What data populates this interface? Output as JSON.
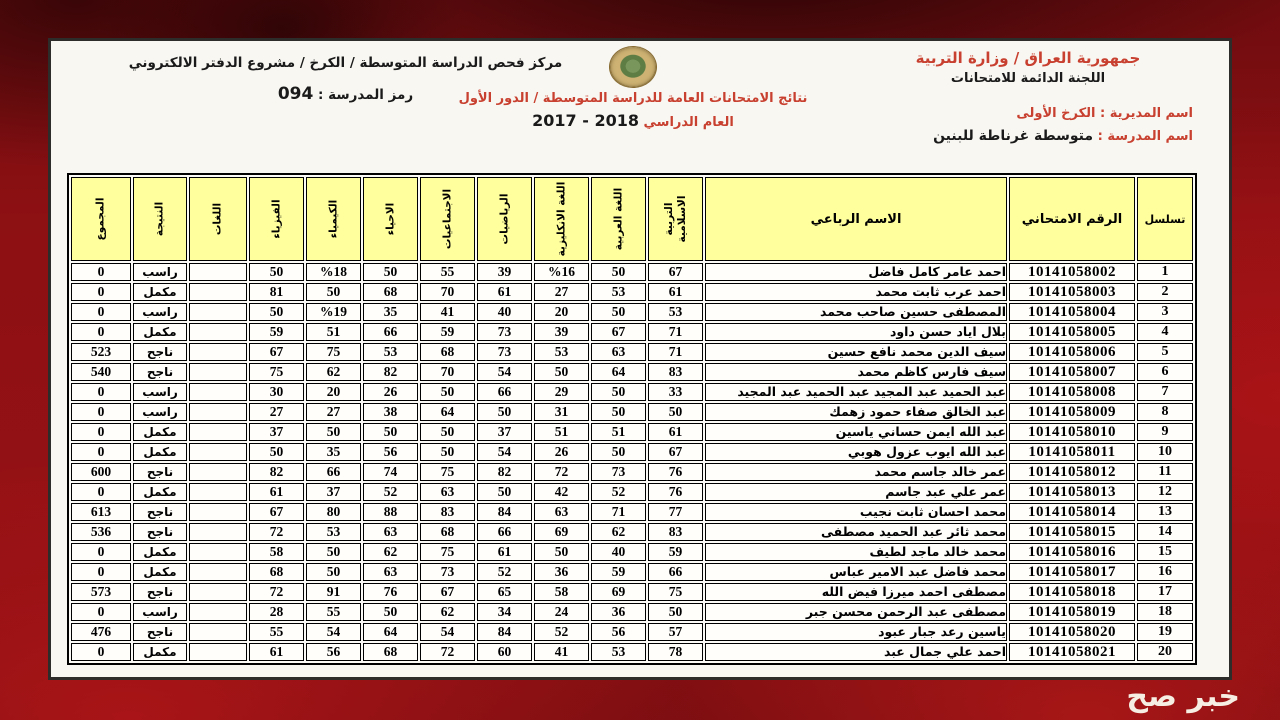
{
  "colors": {
    "background_red": "#8d1013",
    "text_red": "#c8402f",
    "header_yellow": "#ffff9e"
  },
  "watermark": "خبر صح",
  "header": {
    "right": {
      "ministry": "جمهورية العراق / وزارة التربية",
      "committee": "اللجنة الدائمة للامتحانات",
      "directorate": "اسم المديرية : الكرخ الأولى",
      "school_label": "اسم المدرسة :",
      "school_name": "متوسطة غرناطة للبنين"
    },
    "center": {
      "emblem": "iraq-ministry-of-education-emblem",
      "results_title": "نتائج الامتحانات العامة للدراسة المتوسطة / الدور الأول",
      "year_label": "العام الدراسي",
      "year_value": "2017 - 2018"
    },
    "left": {
      "center_line": "مركز فحص الدراسة المتوسطة /  الكرخ  / مشروع الدفتر الالكتروني",
      "school_code_label": "رمز المدرسة :",
      "school_code": "094"
    }
  },
  "table": {
    "columns": [
      {
        "key": "serial",
        "label": "تسلسل",
        "rotated": false
      },
      {
        "key": "exam_no",
        "label": "الرقم الامتحاني",
        "rotated": false
      },
      {
        "key": "name",
        "label": "الاسم الرباعي",
        "rotated": false
      },
      {
        "key": "islamic",
        "label": "التربية الاسلامية",
        "rotated": true
      },
      {
        "key": "arabic",
        "label": "اللغة العربية",
        "rotated": true
      },
      {
        "key": "english",
        "label": "اللغة الانكليزية",
        "rotated": true
      },
      {
        "key": "math",
        "label": "الرياضيات",
        "rotated": true
      },
      {
        "key": "social",
        "label": "الاجتماعيات",
        "rotated": true
      },
      {
        "key": "biology",
        "label": "الاحياء",
        "rotated": true
      },
      {
        "key": "chemistry",
        "label": "الكيمياء",
        "rotated": true
      },
      {
        "key": "physics",
        "label": "الفيزياء",
        "rotated": true
      },
      {
        "key": "languages",
        "label": "اللغات",
        "rotated": true
      },
      {
        "key": "result",
        "label": "النتيجة",
        "rotated": true
      },
      {
        "key": "total",
        "label": "المجموع",
        "rotated": true
      }
    ],
    "rows": [
      [
        "1",
        "10141058002",
        "احمد عامر كامل فاضل",
        "67",
        "50",
        "%16",
        "39",
        "55",
        "50",
        "%18",
        "50",
        "",
        "راسب",
        "0"
      ],
      [
        "2",
        "10141058003",
        "احمد عرب ثابت محمد",
        "61",
        "53",
        "27",
        "61",
        "70",
        "68",
        "50",
        "81",
        "",
        "مكمل",
        "0"
      ],
      [
        "3",
        "10141058004",
        "المصطفى حسين صاحب محمد",
        "53",
        "50",
        "20",
        "40",
        "41",
        "35",
        "%19",
        "50",
        "",
        "راسب",
        "0"
      ],
      [
        "4",
        "10141058005",
        "بلال اياد حسن داود",
        "71",
        "67",
        "39",
        "73",
        "59",
        "66",
        "51",
        "59",
        "",
        "مكمل",
        "0"
      ],
      [
        "5",
        "10141058006",
        "سيف الدين محمد نافع حسين",
        "71",
        "63",
        "53",
        "73",
        "68",
        "53",
        "75",
        "67",
        "",
        "ناجح",
        "523"
      ],
      [
        "6",
        "10141058007",
        "سيف فارس كاظم محمد",
        "83",
        "64",
        "50",
        "54",
        "70",
        "82",
        "62",
        "75",
        "",
        "ناجح",
        "540"
      ],
      [
        "7",
        "10141058008",
        "عبد الحميد عبد المجيد عبد الحميد عبد المجيد",
        "33",
        "50",
        "29",
        "66",
        "50",
        "26",
        "20",
        "30",
        "",
        "راسب",
        "0"
      ],
      [
        "8",
        "10141058009",
        "عبد الخالق صفاء حمود زهمك",
        "50",
        "50",
        "31",
        "50",
        "64",
        "38",
        "27",
        "27",
        "",
        "راسب",
        "0"
      ],
      [
        "9",
        "10141058010",
        "عبد الله ايمن حساني ياسين",
        "61",
        "51",
        "51",
        "37",
        "50",
        "50",
        "50",
        "37",
        "",
        "مكمل",
        "0"
      ],
      [
        "10",
        "10141058011",
        "عبد الله ايوب عزول هوبي",
        "67",
        "50",
        "26",
        "54",
        "50",
        "56",
        "35",
        "50",
        "",
        "مكمل",
        "0"
      ],
      [
        "11",
        "10141058012",
        "عمر خالد جاسم محمد",
        "76",
        "73",
        "72",
        "82",
        "75",
        "74",
        "66",
        "82",
        "",
        "ناجح",
        "600"
      ],
      [
        "12",
        "10141058013",
        "عمر علي عبد جاسم",
        "76",
        "52",
        "42",
        "50",
        "63",
        "52",
        "37",
        "61",
        "",
        "مكمل",
        "0"
      ],
      [
        "13",
        "10141058014",
        "محمد احسان ثابت نجيب",
        "77",
        "71",
        "63",
        "84",
        "83",
        "88",
        "80",
        "67",
        "",
        "ناجح",
        "613"
      ],
      [
        "14",
        "10141058015",
        "محمد ثائر عبد الحميد مصطفى",
        "83",
        "62",
        "69",
        "66",
        "68",
        "63",
        "53",
        "72",
        "",
        "ناجح",
        "536"
      ],
      [
        "15",
        "10141058016",
        "محمد خالد ماجد لطيف",
        "59",
        "40",
        "50",
        "61",
        "75",
        "62",
        "50",
        "58",
        "",
        "مكمل",
        "0"
      ],
      [
        "16",
        "10141058017",
        "محمد فاضل عبد الامير عباس",
        "66",
        "59",
        "36",
        "52",
        "73",
        "63",
        "50",
        "68",
        "",
        "مكمل",
        "0"
      ],
      [
        "17",
        "10141058018",
        "مصطفى احمد ميرزا فيض الله",
        "75",
        "69",
        "58",
        "65",
        "67",
        "76",
        "91",
        "72",
        "",
        "ناجح",
        "573"
      ],
      [
        "18",
        "10141058019",
        "مصطفى عبد الرحمن محسن جبر",
        "50",
        "36",
        "24",
        "34",
        "62",
        "50",
        "55",
        "28",
        "",
        "راسب",
        "0"
      ],
      [
        "19",
        "10141058020",
        "ياسين رعد جبار عبود",
        "57",
        "56",
        "52",
        "84",
        "54",
        "64",
        "54",
        "55",
        "",
        "ناجح",
        "476"
      ],
      [
        "20",
        "10141058021",
        "احمد علي جمال عبد",
        "78",
        "53",
        "41",
        "60",
        "72",
        "68",
        "56",
        "61",
        "",
        "مكمل",
        "0"
      ]
    ]
  }
}
